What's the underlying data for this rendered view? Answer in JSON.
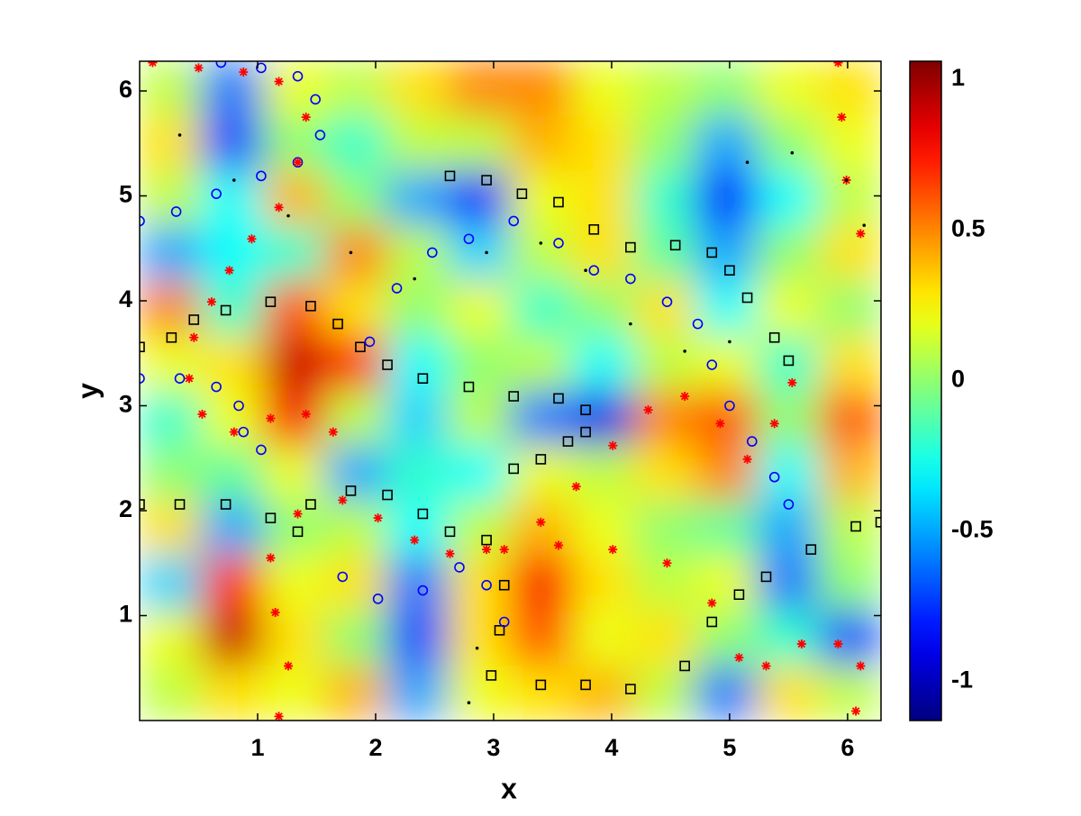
{
  "chart_data": {
    "type": "field-trajectories",
    "x_label": "x",
    "y_label": "y",
    "xlim": [
      0,
      6.2832
    ],
    "ylim": [
      0,
      6.2832
    ],
    "xticks": [
      1,
      2,
      3,
      4,
      5,
      6
    ],
    "yticks": [
      1,
      2,
      3,
      4,
      5,
      6
    ],
    "colormap": "jet",
    "colorbar": {
      "lim": [
        -1.13,
        1.06
      ],
      "ticks": [
        -1,
        -0.5,
        0,
        0.5,
        1
      ]
    },
    "field": {
      "values": [
        [
          0.1,
          -0.6,
          0.2,
          0.1,
          0.3,
          0.5,
          0.5,
          0.2,
          0.1,
          0.0,
          0.2,
          0.3
        ],
        [
          0.3,
          -0.7,
          0.0,
          -0.2,
          0.1,
          0.1,
          0.4,
          0.3,
          0.0,
          -0.5,
          0.0,
          0.2
        ],
        [
          0.1,
          -0.3,
          0.4,
          0.0,
          -0.5,
          -0.8,
          0.2,
          0.3,
          -0.2,
          -0.8,
          -0.3,
          0.1
        ],
        [
          -0.5,
          -0.3,
          -0.2,
          0.5,
          0.1,
          -0.4,
          0.1,
          0.3,
          -0.1,
          -0.5,
          0.0,
          0.3
        ],
        [
          0.5,
          -0.2,
          0.6,
          0.3,
          0.0,
          0.2,
          -0.2,
          0.0,
          0.3,
          -0.3,
          0.2,
          0.0
        ],
        [
          0.2,
          0.3,
          0.9,
          0.7,
          -0.3,
          0.0,
          0.1,
          -0.3,
          0.1,
          0.2,
          -0.2,
          0.3
        ],
        [
          -0.2,
          0.2,
          0.8,
          0.1,
          -0.4,
          0.1,
          -0.6,
          -0.9,
          0.5,
          0.6,
          0.0,
          0.6
        ],
        [
          0.0,
          -0.1,
          0.2,
          -0.5,
          -0.2,
          -0.3,
          0.2,
          0.1,
          0.3,
          0.5,
          -0.3,
          0.4
        ],
        [
          0.3,
          -0.5,
          0.0,
          0.1,
          -0.3,
          0.1,
          0.4,
          0.2,
          0.0,
          -0.1,
          -0.5,
          0.1
        ],
        [
          -0.4,
          0.7,
          0.2,
          0.3,
          -0.6,
          0.3,
          0.8,
          0.3,
          0.1,
          0.2,
          -0.6,
          0.0
        ],
        [
          0.2,
          0.9,
          0.3,
          0.0,
          -0.7,
          0.3,
          0.6,
          0.2,
          0.3,
          0.0,
          -0.2,
          -0.7
        ],
        [
          0.1,
          0.3,
          0.2,
          0.4,
          -0.5,
          0.2,
          0.3,
          0.4,
          0.1,
          -0.6,
          0.3,
          0.1
        ]
      ]
    },
    "series": [
      {
        "marker": "square",
        "color": "#000000",
        "tracks": [
          {
            "x": [
              0.0,
              0.27,
              0.46,
              0.73,
              1.11,
              1.45,
              1.68,
              1.87,
              2.1,
              2.4,
              2.79,
              3.17,
              3.55,
              3.78,
              3.78,
              3.63,
              3.4,
              3.17
            ],
            "y": [
              3.56,
              3.65,
              3.82,
              3.91,
              3.99,
              3.95,
              3.78,
              3.56,
              3.39,
              3.26,
              3.18,
              3.09,
              3.07,
              2.96,
              2.75,
              2.66,
              2.49,
              2.4
            ]
          },
          {
            "x": [
              2.63,
              2.94,
              3.24,
              3.55,
              3.85,
              4.16,
              4.54,
              4.85,
              5.0,
              5.15,
              5.38,
              5.5
            ],
            "y": [
              5.19,
              5.15,
              5.02,
              4.94,
              4.68,
              4.51,
              4.53,
              4.46,
              4.29,
              4.03,
              3.65,
              3.43
            ]
          },
          {
            "x": [
              0.0,
              0.34,
              0.73,
              1.11,
              1.34,
              1.45,
              1.79,
              2.1,
              2.4,
              2.63,
              2.94,
              3.09,
              3.05,
              2.98,
              3.4,
              3.78,
              4.16,
              4.62,
              4.85,
              5.08,
              5.31,
              5.69,
              6.07,
              6.28
            ],
            "y": [
              2.06,
              2.06,
              2.06,
              1.93,
              1.8,
              2.06,
              2.19,
              2.15,
              1.97,
              1.8,
              1.72,
              1.29,
              0.86,
              0.43,
              0.34,
              0.34,
              0.3,
              0.52,
              0.94,
              1.2,
              1.37,
              1.63,
              1.85,
              1.89
            ]
          }
        ]
      },
      {
        "marker": "circle",
        "color": "#0000ff",
        "tracks": [
          {
            "x": [
              0.0,
              0.31,
              0.65,
              1.03,
              1.34,
              1.53,
              1.49,
              1.34,
              1.03,
              0.69
            ],
            "y": [
              4.76,
              4.85,
              5.02,
              5.19,
              5.32,
              5.58,
              5.92,
              6.14,
              6.22,
              6.27
            ]
          },
          {
            "x": [
              0.0,
              0.34,
              0.65,
              0.84,
              0.88,
              1.03
            ],
            "y": [
              3.26,
              3.26,
              3.18,
              3.0,
              2.75,
              2.58
            ]
          },
          {
            "x": [
              1.95,
              2.18,
              2.48,
              2.79,
              3.17,
              3.55,
              3.85,
              4.16,
              4.47,
              4.73,
              4.85,
              5.0,
              5.19,
              5.38,
              5.5
            ],
            "y": [
              3.61,
              4.12,
              4.46,
              4.59,
              4.76,
              4.55,
              4.29,
              4.21,
              3.99,
              3.78,
              3.39,
              3.0,
              2.66,
              2.32,
              2.06
            ]
          },
          {
            "x": [
              1.72,
              2.02,
              2.4,
              2.71,
              2.94,
              3.09
            ],
            "y": [
              1.37,
              1.16,
              1.24,
              1.46,
              1.29,
              0.94
            ]
          }
        ]
      },
      {
        "marker": "asterisk",
        "color": "#ff0000",
        "tracks": [
          {
            "x": [
              0.11,
              0.5,
              0.88,
              1.18,
              1.41,
              1.34,
              1.18,
              0.95,
              0.76,
              0.61,
              0.46,
              0.42,
              0.53,
              0.8,
              1.11,
              1.41,
              1.64
            ],
            "y": [
              6.27,
              6.22,
              6.18,
              6.09,
              5.75,
              5.32,
              4.89,
              4.59,
              4.29,
              3.99,
              3.65,
              3.26,
              2.92,
              2.75,
              2.88,
              2.92,
              2.75
            ]
          },
          {
            "x": [
              1.34,
              1.72,
              2.02,
              2.33,
              2.63,
              2.94,
              3.4,
              3.7,
              4.01,
              4.31,
              4.62,
              4.92,
              5.15,
              5.38,
              5.53
            ],
            "y": [
              1.97,
              2.1,
              1.93,
              1.72,
              1.59,
              1.63,
              1.89,
              2.23,
              2.62,
              2.96,
              3.09,
              2.83,
              2.49,
              2.83,
              3.22
            ]
          },
          {
            "x": [
              3.09,
              3.55,
              4.01,
              4.47,
              4.85,
              5.08,
              5.31,
              5.61,
              5.92,
              6.11,
              6.07
            ],
            "y": [
              1.63,
              1.67,
              1.63,
              1.5,
              1.12,
              0.6,
              0.52,
              0.73,
              0.73,
              0.52,
              0.09
            ]
          },
          {
            "x": [
              1.18,
              1.26,
              1.15,
              1.11
            ],
            "y": [
              0.04,
              0.52,
              1.03,
              1.55
            ]
          },
          {
            "x": [
              5.92,
              5.95,
              5.99,
              6.11
            ],
            "y": [
              6.27,
              5.75,
              5.15,
              4.64
            ]
          }
        ]
      },
      {
        "marker": "dot",
        "color": "#000000",
        "tracks": [
          {
            "x": [
              0.34,
              0.8,
              1.26,
              1.79,
              2.33,
              2.94,
              3.4,
              3.78,
              4.16,
              4.62,
              5.0
            ],
            "y": [
              5.58,
              5.15,
              4.81,
              4.46,
              4.21,
              4.46,
              4.55,
              4.29,
              3.78,
              3.52,
              3.61
            ]
          },
          {
            "x": [
              2.79,
              2.86
            ],
            "y": [
              0.17,
              0.69
            ]
          },
          {
            "x": [
              5.15,
              5.53,
              5.99,
              6.14
            ],
            "y": [
              5.32,
              5.41,
              5.15,
              4.72
            ]
          }
        ]
      }
    ]
  }
}
